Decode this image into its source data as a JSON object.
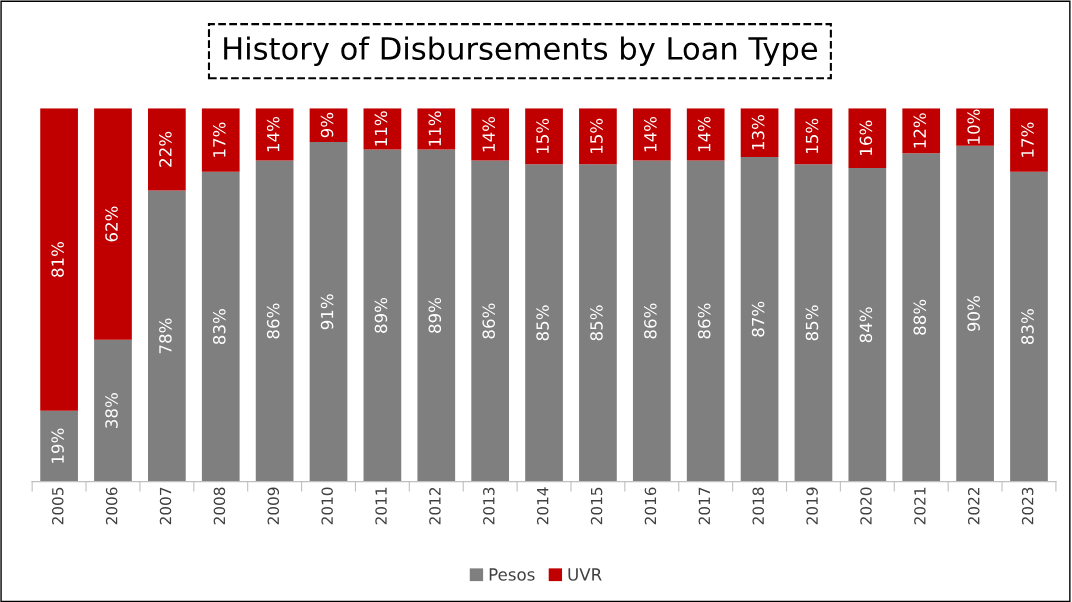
{
  "chart_data": {
    "type": "bar",
    "title": "History of Disbursements by Loan Type",
    "stacked": true,
    "legend": "bottom",
    "grid": false,
    "categories": [
      "2005",
      "2006",
      "2007",
      "2008",
      "2009",
      "2010",
      "2011",
      "2012",
      "2013",
      "2014",
      "2015",
      "2016",
      "2017",
      "2018",
      "2019",
      "2020",
      "2021",
      "2022",
      "2023"
    ],
    "series": [
      {
        "name": "Pesos",
        "color": "#7f7f7f",
        "values": [
          19,
          38,
          78,
          83,
          86,
          91,
          89,
          89,
          86,
          85,
          85,
          86,
          86,
          87,
          85,
          84,
          88,
          90,
          83
        ],
        "value_labels": [
          "19%",
          "38%",
          "78%",
          "83%",
          "86%",
          "91%",
          "89%",
          "89%",
          "86%",
          "85%",
          "85%",
          "86%",
          "86%",
          "87%",
          "85%",
          "84%",
          "88%",
          "90%",
          "83%"
        ]
      },
      {
        "name": "UVR",
        "color": "#c00000",
        "values": [
          81,
          62,
          22,
          17,
          14,
          9,
          11,
          11,
          14,
          15,
          15,
          14,
          14,
          13,
          15,
          16,
          12,
          10,
          17
        ],
        "value_labels": [
          "81%",
          "62%",
          "22%",
          "17%",
          "14%",
          "9%",
          "11%",
          "11%",
          "14%",
          "15%",
          "15%",
          "14%",
          "14%",
          "13%",
          "15%",
          "16%",
          "12%",
          "10%",
          "17%"
        ]
      }
    ]
  }
}
